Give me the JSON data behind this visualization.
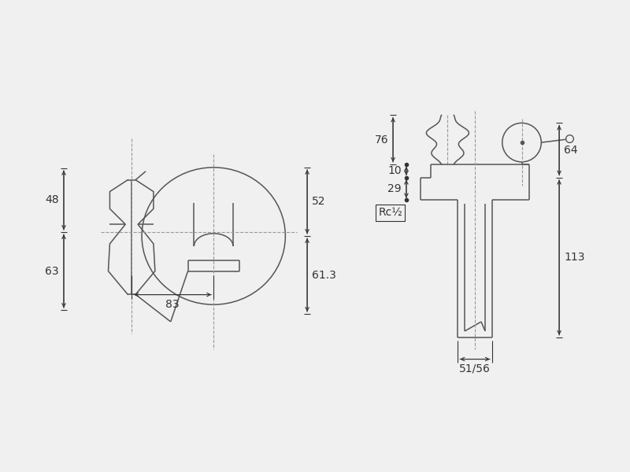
{
  "bg_color": "#f0f0f0",
  "line_color": "#555555",
  "dim_color": "#333333",
  "center_line_color": "#999999",
  "figsize": [
    8.0,
    6.0
  ],
  "dpi": 100,
  "lw": 1.1,
  "lw_dim": 0.8,
  "fontsize": 10
}
